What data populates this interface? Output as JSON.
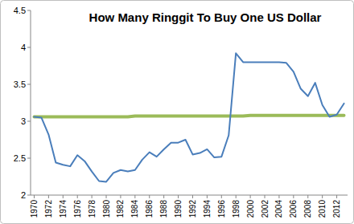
{
  "chart_data": {
    "type": "line",
    "title": "How Many Ringgit To Buy One US Dollar",
    "categories": [
      1970,
      null,
      1972,
      null,
      1974,
      null,
      1976,
      null,
      1978,
      null,
      1980,
      null,
      1982,
      null,
      1984,
      null,
      1986,
      null,
      1988,
      null,
      1990,
      null,
      1992,
      null,
      1994,
      null,
      1996,
      null,
      1998,
      null,
      2000,
      null,
      2002,
      null,
      2004,
      null,
      2006,
      null,
      2008,
      null,
      2010,
      null,
      2012,
      null
    ],
    "series": [
      {
        "color": "#4a7ebb",
        "values": [
          3.06,
          3.05,
          2.82,
          2.44,
          2.41,
          2.39,
          2.54,
          2.46,
          2.32,
          2.19,
          2.18,
          2.3,
          2.34,
          2.32,
          2.34,
          2.48,
          2.58,
          2.52,
          2.62,
          2.71,
          2.71,
          2.75,
          2.55,
          2.57,
          2.62,
          2.51,
          2.52,
          2.81,
          3.92,
          3.8,
          3.8,
          3.8,
          3.8,
          3.8,
          3.8,
          3.79,
          3.67,
          3.44,
          3.34,
          3.52,
          3.22,
          3.06,
          3.09,
          3.24
        ]
      },
      {
        "color": "#9bbb59",
        "values": [
          3.06,
          3.06,
          3.06,
          3.06,
          3.06,
          3.06,
          3.06,
          3.06,
          3.06,
          3.06,
          3.06,
          3.06,
          3.06,
          3.06,
          3.07,
          3.07,
          3.07,
          3.07,
          3.07,
          3.07,
          3.07,
          3.07,
          3.07,
          3.07,
          3.07,
          3.07,
          3.07,
          3.07,
          3.07,
          3.07,
          3.08,
          3.08,
          3.08,
          3.08,
          3.08,
          3.08,
          3.08,
          3.08,
          3.08,
          3.08,
          3.08,
          3.08,
          3.08,
          3.08
        ]
      }
    ],
    "ylim": [
      2,
      4.5
    ],
    "yticks": [
      2,
      2.5,
      3,
      3.5,
      4,
      4.5
    ],
    "grid": false
  }
}
